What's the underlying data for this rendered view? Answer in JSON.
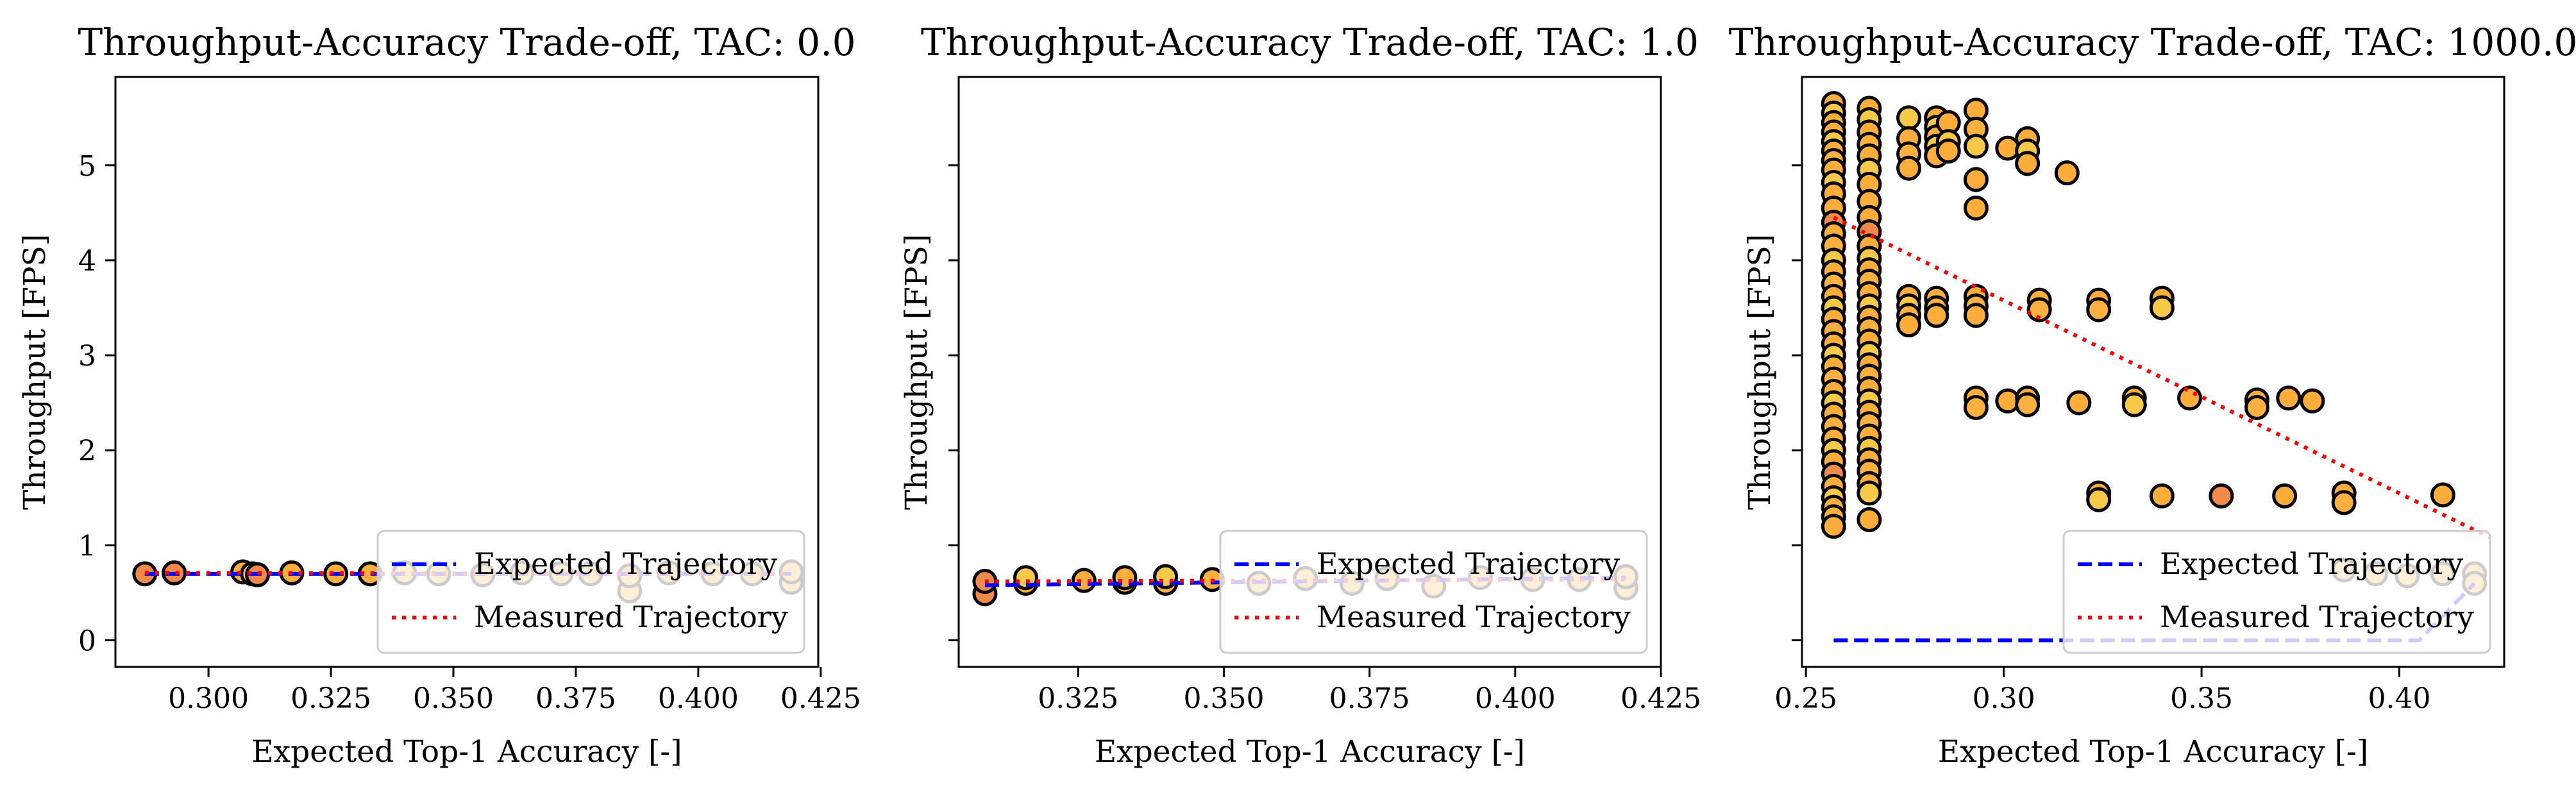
{
  "chart_data": [
    {
      "type": "scatter",
      "title": "Throughput-Accuracy Trade-off, TAC: 0.0",
      "xlabel": "Expected Top-1 Accuracy [-]",
      "ylabel": "Throughput [FPS]",
      "xlim": [
        0.281,
        0.4245
      ],
      "ylim": [
        -0.28,
        5.93
      ],
      "xticks": [
        0.3,
        0.325,
        0.35,
        0.375,
        0.4,
        0.425
      ],
      "xtick_labels": [
        "0.300",
        "0.325",
        "0.350",
        "0.375",
        "0.400",
        "0.425"
      ],
      "yticks": [
        0,
        1,
        2,
        3,
        4,
        5
      ],
      "ytick_labels": [
        "0",
        "1",
        "2",
        "3",
        "4",
        "5"
      ],
      "show_ytick_labels": true,
      "show_ylabel": true,
      "grid": false,
      "legend_position": "lower-right",
      "points": [
        {
          "x": 0.287,
          "y": 0.7,
          "c": "#f08a4b"
        },
        {
          "x": 0.293,
          "y": 0.71,
          "c": "#f08a4b"
        },
        {
          "x": 0.307,
          "y": 0.72,
          "c": "#fdae3a"
        },
        {
          "x": 0.309,
          "y": 0.7,
          "c": "#f7c948"
        },
        {
          "x": 0.31,
          "y": 0.69,
          "c": "#f08a4b"
        },
        {
          "x": 0.317,
          "y": 0.71,
          "c": "#fdae3a"
        },
        {
          "x": 0.326,
          "y": 0.7,
          "c": "#fdae3a"
        },
        {
          "x": 0.333,
          "y": 0.7,
          "c": "#fbb040"
        },
        {
          "x": 0.34,
          "y": 0.71,
          "c": "#fbb040"
        },
        {
          "x": 0.347,
          "y": 0.7,
          "c": "#fbb040"
        },
        {
          "x": 0.356,
          "y": 0.69,
          "c": "#fbb040"
        },
        {
          "x": 0.364,
          "y": 0.71,
          "c": "#fbb040"
        },
        {
          "x": 0.372,
          "y": 0.7,
          "c": "#fbb040"
        },
        {
          "x": 0.378,
          "y": 0.7,
          "c": "#fbb040"
        },
        {
          "x": 0.386,
          "y": 0.52,
          "c": "#fbb040"
        },
        {
          "x": 0.386,
          "y": 0.68,
          "c": "#fbb040"
        },
        {
          "x": 0.394,
          "y": 0.71,
          "c": "#fbb040"
        },
        {
          "x": 0.403,
          "y": 0.7,
          "c": "#fbb040"
        },
        {
          "x": 0.411,
          "y": 0.7,
          "c": "#fbb040"
        },
        {
          "x": 0.419,
          "y": 0.61,
          "c": "#fbb040"
        },
        {
          "x": 0.419,
          "y": 0.72,
          "c": "#fbb040"
        }
      ],
      "expected_trajectory": [
        [
          0.287,
          0.7
        ],
        [
          0.419,
          0.7
        ]
      ],
      "measured_trajectory": [
        [
          0.287,
          0.71
        ],
        [
          0.419,
          0.7
        ]
      ],
      "legend": {
        "expected": "Expected Trajectory",
        "measured": "Measured Trajectory"
      }
    },
    {
      "type": "scatter",
      "title": "Throughput-Accuracy Trade-off, TAC: 1.0",
      "xlabel": "Expected Top-1 Accuracy [-]",
      "ylabel": "Throughput [FPS]",
      "xlim": [
        0.3045,
        0.425
      ],
      "ylim": [
        -0.28,
        5.93
      ],
      "xticks": [
        0.325,
        0.35,
        0.375,
        0.4,
        0.425
      ],
      "xtick_labels": [
        "0.325",
        "0.350",
        "0.375",
        "0.400",
        "0.425"
      ],
      "yticks": [
        0,
        1,
        2,
        3,
        4,
        5
      ],
      "ytick_labels": [
        "",
        "",
        "",
        "",
        "",
        ""
      ],
      "show_ytick_labels": false,
      "show_ylabel": true,
      "grid": false,
      "legend_position": "lower-right",
      "points": [
        {
          "x": 0.309,
          "y": 0.49,
          "c": "#f08a4b"
        },
        {
          "x": 0.309,
          "y": 0.62,
          "c": "#f08a4b"
        },
        {
          "x": 0.316,
          "y": 0.6,
          "c": "#fdae3a"
        },
        {
          "x": 0.316,
          "y": 0.66,
          "c": "#f7c948"
        },
        {
          "x": 0.326,
          "y": 0.63,
          "c": "#fdae3a"
        },
        {
          "x": 0.333,
          "y": 0.61,
          "c": "#fdae3a"
        },
        {
          "x": 0.333,
          "y": 0.66,
          "c": "#fdae3a"
        },
        {
          "x": 0.34,
          "y": 0.6,
          "c": "#fbb040"
        },
        {
          "x": 0.34,
          "y": 0.67,
          "c": "#f7c948"
        },
        {
          "x": 0.348,
          "y": 0.64,
          "c": "#fbb040"
        },
        {
          "x": 0.356,
          "y": 0.6,
          "c": "#fbb040"
        },
        {
          "x": 0.364,
          "y": 0.65,
          "c": "#fbb040"
        },
        {
          "x": 0.372,
          "y": 0.6,
          "c": "#fbb040"
        },
        {
          "x": 0.378,
          "y": 0.65,
          "c": "#fbb040"
        },
        {
          "x": 0.386,
          "y": 0.57,
          "c": "#fbb040"
        },
        {
          "x": 0.394,
          "y": 0.66,
          "c": "#fbb040"
        },
        {
          "x": 0.403,
          "y": 0.64,
          "c": "#fbb040"
        },
        {
          "x": 0.411,
          "y": 0.64,
          "c": "#fbb040"
        },
        {
          "x": 0.419,
          "y": 0.55,
          "c": "#fbb040"
        },
        {
          "x": 0.419,
          "y": 0.67,
          "c": "#fbb040"
        }
      ],
      "expected_trajectory": [
        [
          0.309,
          0.58
        ],
        [
          0.419,
          0.66
        ]
      ],
      "measured_trajectory": [
        [
          0.309,
          0.62
        ],
        [
          0.419,
          0.64
        ]
      ],
      "legend": {
        "expected": "Expected Trajectory",
        "measured": "Measured Trajectory"
      }
    },
    {
      "type": "scatter",
      "title": "Throughput-Accuracy Trade-off, TAC: 1000.0",
      "xlabel": "Expected Top-1 Accuracy [-]",
      "ylabel": "Throughput [FPS]",
      "xlim": [
        0.249,
        0.4265
      ],
      "ylim": [
        -0.28,
        5.93
      ],
      "xticks": [
        0.25,
        0.3,
        0.35,
        0.4
      ],
      "xtick_labels": [
        "0.25",
        "0.30",
        "0.35",
        "0.40"
      ],
      "yticks": [
        0,
        1,
        2,
        3,
        4,
        5
      ],
      "ytick_labels": [
        "",
        "",
        "",
        "",
        "",
        ""
      ],
      "show_ytick_labels": false,
      "show_ylabel": true,
      "grid": false,
      "legend_position": "lower-right",
      "points": [
        {
          "x": 0.257,
          "y": 5.65,
          "c": "#fdae3a"
        },
        {
          "x": 0.257,
          "y": 5.55,
          "c": "#f7c948"
        },
        {
          "x": 0.257,
          "y": 5.45,
          "c": "#fdae3a"
        },
        {
          "x": 0.257,
          "y": 5.35,
          "c": "#fdae3a"
        },
        {
          "x": 0.257,
          "y": 5.25,
          "c": "#f7c948"
        },
        {
          "x": 0.257,
          "y": 5.15,
          "c": "#fdae3a"
        },
        {
          "x": 0.257,
          "y": 5.05,
          "c": "#fbb040"
        },
        {
          "x": 0.257,
          "y": 4.95,
          "c": "#fdae3a"
        },
        {
          "x": 0.257,
          "y": 4.82,
          "c": "#f7c948"
        },
        {
          "x": 0.257,
          "y": 4.7,
          "c": "#fdae3a"
        },
        {
          "x": 0.257,
          "y": 4.55,
          "c": "#fdae3a"
        },
        {
          "x": 0.257,
          "y": 4.4,
          "c": "#f08a4b"
        },
        {
          "x": 0.257,
          "y": 4.28,
          "c": "#fdae3a"
        },
        {
          "x": 0.257,
          "y": 4.15,
          "c": "#fbb040"
        },
        {
          "x": 0.257,
          "y": 4.0,
          "c": "#f7c948"
        },
        {
          "x": 0.257,
          "y": 3.88,
          "c": "#fdae3a"
        },
        {
          "x": 0.257,
          "y": 3.75,
          "c": "#fbb040"
        },
        {
          "x": 0.257,
          "y": 3.62,
          "c": "#fdae3a"
        },
        {
          "x": 0.257,
          "y": 3.5,
          "c": "#f7c948"
        },
        {
          "x": 0.257,
          "y": 3.38,
          "c": "#fdae3a"
        },
        {
          "x": 0.257,
          "y": 3.25,
          "c": "#fbb040"
        },
        {
          "x": 0.257,
          "y": 3.12,
          "c": "#fdae3a"
        },
        {
          "x": 0.257,
          "y": 3.0,
          "c": "#f7c948"
        },
        {
          "x": 0.257,
          "y": 2.88,
          "c": "#fdae3a"
        },
        {
          "x": 0.257,
          "y": 2.75,
          "c": "#fbb040"
        },
        {
          "x": 0.257,
          "y": 2.62,
          "c": "#fdae3a"
        },
        {
          "x": 0.257,
          "y": 2.5,
          "c": "#f7c948"
        },
        {
          "x": 0.257,
          "y": 2.38,
          "c": "#fdae3a"
        },
        {
          "x": 0.257,
          "y": 2.25,
          "c": "#fbb040"
        },
        {
          "x": 0.257,
          "y": 2.12,
          "c": "#fdae3a"
        },
        {
          "x": 0.257,
          "y": 2.0,
          "c": "#f7c948"
        },
        {
          "x": 0.257,
          "y": 1.88,
          "c": "#fdae3a"
        },
        {
          "x": 0.257,
          "y": 1.75,
          "c": "#f08a4b"
        },
        {
          "x": 0.257,
          "y": 1.62,
          "c": "#fdae3a"
        },
        {
          "x": 0.257,
          "y": 1.5,
          "c": "#f7c948"
        },
        {
          "x": 0.257,
          "y": 1.4,
          "c": "#fdae3a"
        },
        {
          "x": 0.257,
          "y": 1.3,
          "c": "#fbb040"
        },
        {
          "x": 0.257,
          "y": 1.2,
          "c": "#fdae3a"
        },
        {
          "x": 0.266,
          "y": 5.6,
          "c": "#fdae3a"
        },
        {
          "x": 0.266,
          "y": 5.48,
          "c": "#f7c948"
        },
        {
          "x": 0.266,
          "y": 5.35,
          "c": "#fdae3a"
        },
        {
          "x": 0.266,
          "y": 5.22,
          "c": "#fbb040"
        },
        {
          "x": 0.266,
          "y": 5.1,
          "c": "#fdae3a"
        },
        {
          "x": 0.266,
          "y": 4.95,
          "c": "#f7c948"
        },
        {
          "x": 0.266,
          "y": 4.8,
          "c": "#fdae3a"
        },
        {
          "x": 0.266,
          "y": 4.62,
          "c": "#fbb040"
        },
        {
          "x": 0.266,
          "y": 4.45,
          "c": "#fdae3a"
        },
        {
          "x": 0.266,
          "y": 4.3,
          "c": "#f08a4b"
        },
        {
          "x": 0.266,
          "y": 4.15,
          "c": "#fdae3a"
        },
        {
          "x": 0.266,
          "y": 4.02,
          "c": "#f7c948"
        },
        {
          "x": 0.266,
          "y": 3.9,
          "c": "#fdae3a"
        },
        {
          "x": 0.266,
          "y": 3.78,
          "c": "#fbb040"
        },
        {
          "x": 0.266,
          "y": 3.65,
          "c": "#fdae3a"
        },
        {
          "x": 0.266,
          "y": 3.52,
          "c": "#f7c948"
        },
        {
          "x": 0.266,
          "y": 3.4,
          "c": "#fdae3a"
        },
        {
          "x": 0.266,
          "y": 3.28,
          "c": "#fbb040"
        },
        {
          "x": 0.266,
          "y": 3.15,
          "c": "#fdae3a"
        },
        {
          "x": 0.266,
          "y": 3.02,
          "c": "#f7c948"
        },
        {
          "x": 0.266,
          "y": 2.9,
          "c": "#fdae3a"
        },
        {
          "x": 0.266,
          "y": 2.78,
          "c": "#fbb040"
        },
        {
          "x": 0.266,
          "y": 2.65,
          "c": "#fdae3a"
        },
        {
          "x": 0.266,
          "y": 2.52,
          "c": "#f7c948"
        },
        {
          "x": 0.266,
          "y": 2.4,
          "c": "#fdae3a"
        },
        {
          "x": 0.266,
          "y": 2.28,
          "c": "#fbb040"
        },
        {
          "x": 0.266,
          "y": 2.15,
          "c": "#fdae3a"
        },
        {
          "x": 0.266,
          "y": 2.02,
          "c": "#f7c948"
        },
        {
          "x": 0.266,
          "y": 1.9,
          "c": "#fdae3a"
        },
        {
          "x": 0.266,
          "y": 1.78,
          "c": "#fbb040"
        },
        {
          "x": 0.266,
          "y": 1.65,
          "c": "#fdae3a"
        },
        {
          "x": 0.266,
          "y": 1.55,
          "c": "#f7c948"
        },
        {
          "x": 0.266,
          "y": 1.27,
          "c": "#fdae3a"
        },
        {
          "x": 0.276,
          "y": 5.5,
          "c": "#f7c948"
        },
        {
          "x": 0.276,
          "y": 5.28,
          "c": "#fdae3a"
        },
        {
          "x": 0.276,
          "y": 5.12,
          "c": "#fbb040"
        },
        {
          "x": 0.276,
          "y": 4.97,
          "c": "#fdae3a"
        },
        {
          "x": 0.276,
          "y": 3.62,
          "c": "#fdae3a"
        },
        {
          "x": 0.276,
          "y": 3.52,
          "c": "#f7c948"
        },
        {
          "x": 0.276,
          "y": 3.42,
          "c": "#fbb040"
        },
        {
          "x": 0.276,
          "y": 3.32,
          "c": "#fdae3a"
        },
        {
          "x": 0.283,
          "y": 5.5,
          "c": "#fdae3a"
        },
        {
          "x": 0.283,
          "y": 5.4,
          "c": "#f7c948"
        },
        {
          "x": 0.283,
          "y": 5.3,
          "c": "#fbb040"
        },
        {
          "x": 0.283,
          "y": 5.2,
          "c": "#f7c948"
        },
        {
          "x": 0.283,
          "y": 5.1,
          "c": "#fdae3a"
        },
        {
          "x": 0.283,
          "y": 3.6,
          "c": "#fdae3a"
        },
        {
          "x": 0.283,
          "y": 3.5,
          "c": "#fbb040"
        },
        {
          "x": 0.283,
          "y": 3.42,
          "c": "#fdae3a"
        },
        {
          "x": 0.286,
          "y": 5.45,
          "c": "#fdae3a"
        },
        {
          "x": 0.286,
          "y": 5.25,
          "c": "#f7c948"
        },
        {
          "x": 0.286,
          "y": 5.15,
          "c": "#fdae3a"
        },
        {
          "x": 0.293,
          "y": 5.58,
          "c": "#fdae3a"
        },
        {
          "x": 0.293,
          "y": 5.38,
          "c": "#fbb040"
        },
        {
          "x": 0.293,
          "y": 5.2,
          "c": "#f7c948"
        },
        {
          "x": 0.293,
          "y": 4.85,
          "c": "#fdae3a"
        },
        {
          "x": 0.293,
          "y": 4.55,
          "c": "#fdae3a"
        },
        {
          "x": 0.293,
          "y": 3.62,
          "c": "#fdae3a"
        },
        {
          "x": 0.293,
          "y": 3.52,
          "c": "#fbb040"
        },
        {
          "x": 0.293,
          "y": 3.42,
          "c": "#fdae3a"
        },
        {
          "x": 0.293,
          "y": 2.55,
          "c": "#fdae3a"
        },
        {
          "x": 0.293,
          "y": 2.45,
          "c": "#fbb040"
        },
        {
          "x": 0.301,
          "y": 5.18,
          "c": "#fdae3a"
        },
        {
          "x": 0.301,
          "y": 2.52,
          "c": "#fdae3a"
        },
        {
          "x": 0.306,
          "y": 5.28,
          "c": "#fdae3a"
        },
        {
          "x": 0.306,
          "y": 5.15,
          "c": "#f7c948"
        },
        {
          "x": 0.306,
          "y": 5.02,
          "c": "#fdae3a"
        },
        {
          "x": 0.306,
          "y": 2.55,
          "c": "#fdae3a"
        },
        {
          "x": 0.306,
          "y": 2.48,
          "c": "#fbb040"
        },
        {
          "x": 0.309,
          "y": 3.58,
          "c": "#fdae3a"
        },
        {
          "x": 0.309,
          "y": 3.48,
          "c": "#fbb040"
        },
        {
          "x": 0.316,
          "y": 4.92,
          "c": "#fdae3a"
        },
        {
          "x": 0.319,
          "y": 2.5,
          "c": "#fdae3a"
        },
        {
          "x": 0.324,
          "y": 3.58,
          "c": "#fdae3a"
        },
        {
          "x": 0.324,
          "y": 3.48,
          "c": "#fbb040"
        },
        {
          "x": 0.324,
          "y": 1.55,
          "c": "#fdae3a"
        },
        {
          "x": 0.324,
          "y": 1.48,
          "c": "#f7c948"
        },
        {
          "x": 0.333,
          "y": 2.55,
          "c": "#fdae3a"
        },
        {
          "x": 0.333,
          "y": 2.48,
          "c": "#f7c948"
        },
        {
          "x": 0.34,
          "y": 3.6,
          "c": "#fdae3a"
        },
        {
          "x": 0.34,
          "y": 3.5,
          "c": "#f7c948"
        },
        {
          "x": 0.34,
          "y": 1.52,
          "c": "#fdae3a"
        },
        {
          "x": 0.347,
          "y": 2.55,
          "c": "#fdae3a"
        },
        {
          "x": 0.355,
          "y": 1.52,
          "c": "#f08a4b"
        },
        {
          "x": 0.364,
          "y": 2.53,
          "c": "#fdae3a"
        },
        {
          "x": 0.364,
          "y": 2.45,
          "c": "#fbb040"
        },
        {
          "x": 0.371,
          "y": 1.52,
          "c": "#fdae3a"
        },
        {
          "x": 0.372,
          "y": 2.55,
          "c": "#fdae3a"
        },
        {
          "x": 0.378,
          "y": 2.52,
          "c": "#fdae3a"
        },
        {
          "x": 0.386,
          "y": 1.55,
          "c": "#fdae3a"
        },
        {
          "x": 0.386,
          "y": 1.45,
          "c": "#fbb040"
        },
        {
          "x": 0.386,
          "y": 0.74,
          "c": "#fbb040"
        },
        {
          "x": 0.394,
          "y": 0.7,
          "c": "#fbb040"
        },
        {
          "x": 0.402,
          "y": 0.68,
          "c": "#fbb040"
        },
        {
          "x": 0.411,
          "y": 1.53,
          "c": "#fdae3a"
        },
        {
          "x": 0.411,
          "y": 0.7,
          "c": "#fbb040"
        },
        {
          "x": 0.419,
          "y": 0.7,
          "c": "#fbb040"
        },
        {
          "x": 0.419,
          "y": 0.6,
          "c": "#fbb040"
        }
      ],
      "expected_trajectory": [
        [
          0.257,
          0.0
        ],
        [
          0.405,
          0.0
        ],
        [
          0.419,
          0.6
        ]
      ],
      "measured_trajectory": [
        [
          0.257,
          4.45
        ],
        [
          0.423,
          1.08
        ]
      ],
      "legend": {
        "expected": "Expected Trajectory",
        "measured": "Measured Trajectory"
      }
    }
  ],
  "colors": {
    "expected_line": "#0000ff",
    "measured_line": "#ff0000",
    "marker_edge": "#000000",
    "legend_frame": "#cccccc"
  }
}
